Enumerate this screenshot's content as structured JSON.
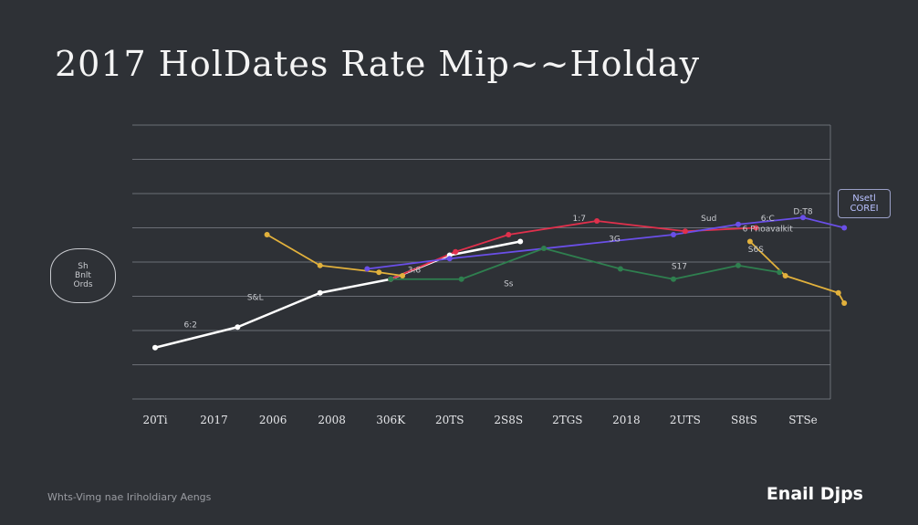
{
  "title": "2017 HolDates Rate Mip~~Holday",
  "footnote": "Whts-Vimg nae Iriholdiary Aengs",
  "brand": "Enail Djps",
  "annotations": {
    "bubble_text": "Sh\nBnlt\nOrds",
    "legend_text": "Nsetl\nCOREI"
  },
  "colors": {
    "background": "#2e3136",
    "grid": "#7b7e85",
    "white_series": "#ffffff",
    "red_series": "#e0304c",
    "purple_series": "#6a4fe8",
    "green_series": "#2f7f4f",
    "yellow_series": "#e2b13c"
  },
  "chart_data": {
    "type": "line",
    "title": "2017 HolDates Rate Mip~~Holday",
    "xlabel": "",
    "ylabel": "",
    "categories": [
      "20Ti",
      "2017",
      "2006",
      "2008",
      "306K",
      "20TS",
      "2S8S",
      "2TGS",
      "2018",
      "2UTS",
      "S8tS",
      "STSe"
    ],
    "ylim": [
      0,
      8
    ],
    "grid": true,
    "series": [
      {
        "color": "#ffffff",
        "points": [
          [
            0,
            1.5
          ],
          [
            1.4,
            2.1
          ],
          [
            2.8,
            3.1
          ],
          [
            4.0,
            3.5
          ],
          [
            5.0,
            4.2
          ],
          [
            6.2,
            4.6
          ]
        ]
      },
      {
        "color": "#e0304c",
        "points": [
          [
            4.0,
            3.5
          ],
          [
            5.1,
            4.3
          ],
          [
            6.0,
            4.8
          ],
          [
            7.5,
            5.2
          ],
          [
            9.0,
            4.9
          ],
          [
            10.2,
            5.0
          ]
        ]
      },
      {
        "color": "#6a4fe8",
        "points": [
          [
            3.6,
            3.8
          ],
          [
            5.0,
            4.1
          ],
          [
            8.8,
            4.8
          ],
          [
            9.9,
            5.1
          ],
          [
            11.0,
            5.3
          ],
          [
            11.7,
            5.0
          ]
        ]
      },
      {
        "color": "#2f7f4f",
        "points": [
          [
            4.0,
            3.5
          ],
          [
            5.2,
            3.5
          ],
          [
            6.6,
            4.4
          ],
          [
            7.9,
            3.8
          ],
          [
            8.8,
            3.5
          ],
          [
            9.9,
            3.9
          ],
          [
            10.6,
            3.7
          ]
        ]
      },
      {
        "color": "#e2b13c",
        "points": [
          [
            1.9,
            4.8
          ],
          [
            2.8,
            3.9
          ],
          [
            3.8,
            3.7
          ],
          [
            4.2,
            3.6
          ]
        ]
      },
      {
        "color": "#e2b13c",
        "points": [
          [
            10.1,
            4.6
          ],
          [
            10.7,
            3.6
          ],
          [
            11.6,
            3.1
          ],
          [
            11.7,
            2.8
          ]
        ]
      }
    ],
    "data_labels": [
      {
        "text": "6:2",
        "x": 0.6,
        "y": 2.1
      },
      {
        "text": "S&L",
        "x": 1.7,
        "y": 2.9
      },
      {
        "text": "3:8",
        "x": 4.4,
        "y": 3.7
      },
      {
        "text": "Ss",
        "x": 6.0,
        "y": 3.3
      },
      {
        "text": "1:7",
        "x": 7.2,
        "y": 5.2
      },
      {
        "text": "3G",
        "x": 7.8,
        "y": 4.6
      },
      {
        "text": "Sud",
        "x": 9.4,
        "y": 5.2
      },
      {
        "text": "S17",
        "x": 8.9,
        "y": 3.8
      },
      {
        "text": "S6S",
        "x": 10.2,
        "y": 4.3
      },
      {
        "text": "6:C",
        "x": 10.4,
        "y": 5.2
      },
      {
        "text": "D:T8",
        "x": 11.0,
        "y": 5.4
      },
      {
        "text": "6 Pnoavalkit",
        "x": 10.4,
        "y": 4.9
      }
    ]
  }
}
